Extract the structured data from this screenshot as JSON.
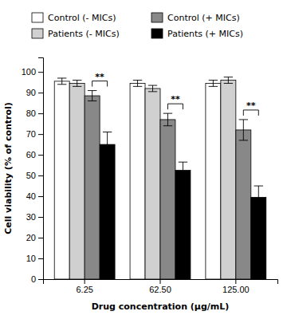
{
  "chart_data": {
    "type": "bar",
    "xlabel": "Drug concentration (μg/mL)",
    "ylabel": "Cell viability (% of control)",
    "categories": [
      "6.25",
      "62.50",
      "125.00"
    ],
    "series": [
      {
        "name": "Control (- MICs)",
        "color": "#FFFFFF",
        "values": [
          95.5,
          94.5,
          94.5
        ],
        "errors": [
          1.5,
          1.5,
          1.5
        ]
      },
      {
        "name": "Patients (- MICs)",
        "color": "#D0D0D0",
        "values": [
          94.5,
          92.0,
          96.0
        ],
        "errors": [
          1.5,
          1.5,
          1.5
        ]
      },
      {
        "name": "Control (+ MICs)",
        "color": "#888888",
        "values": [
          88.5,
          77.0,
          72.0
        ],
        "errors": [
          2.5,
          3.0,
          5.0
        ]
      },
      {
        "name": "Patients (+ MICs)",
        "color": "#000000",
        "values": [
          65.0,
          52.5,
          39.5
        ],
        "errors": [
          6.0,
          4.0,
          5.5
        ]
      }
    ],
    "ylim": [
      0,
      107
    ],
    "yticks": [
      0,
      10,
      20,
      30,
      40,
      50,
      60,
      70,
      80,
      90,
      100
    ],
    "legend": "top",
    "annotations": [
      {
        "text": "**",
        "category": "6.25",
        "between": [
          "Control (+ MICs)",
          "Patients (+ MICs)"
        ]
      },
      {
        "text": "**",
        "category": "62.50",
        "between": [
          "Control (+ MICs)",
          "Patients (+ MICs)"
        ]
      },
      {
        "text": "**",
        "category": "125.00",
        "between": [
          "Control (+ MICs)",
          "Patients (+ MICs)"
        ]
      }
    ]
  }
}
